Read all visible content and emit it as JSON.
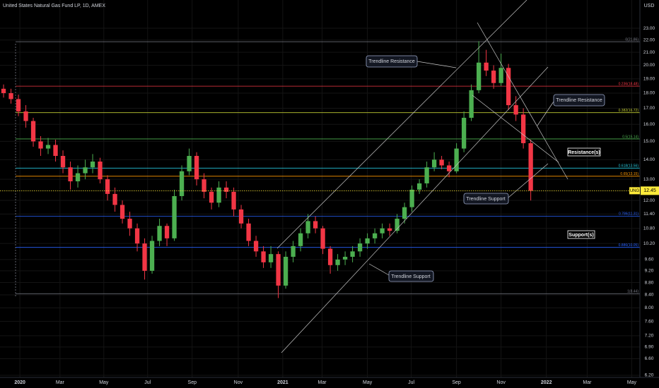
{
  "chart_data": {
    "type": "candlestick",
    "title": "United States Natural Gas Fund LP, 1D, AMEX",
    "currency": "USD",
    "log_scale": true,
    "grid": true,
    "up_color": "#4caf50",
    "down_color": "#f23645",
    "open": [
      18.3,
      18.0,
      17.6,
      16.8,
      16.2,
      15.0,
      14.6,
      14.8,
      14.2,
      13.6,
      12.9,
      13.3,
      13.6,
      13.9,
      13.0,
      12.3,
      11.8,
      11.2,
      10.8,
      10.2,
      9.2,
      10.3,
      10.9,
      10.4,
      12.2,
      13.4,
      14.2,
      13.0,
      12.4,
      11.9,
      12.6,
      12.4,
      11.6,
      11.0,
      10.3,
      9.9,
      9.5,
      9.8,
      8.7,
      9.7,
      10.1,
      10.6,
      11.1,
      10.8,
      10.0,
      9.4,
      9.6,
      9.7,
      9.9,
      10.2,
      10.4,
      10.6,
      10.8,
      10.7,
      11.2,
      11.7,
      12.5,
      12.8,
      13.6,
      14.0,
      13.7,
      13.4,
      14.6,
      16.4,
      18.2,
      20.2,
      19.6,
      18.7,
      19.8,
      17.2,
      16.6,
      14.9
    ],
    "high": [
      18.6,
      18.3,
      17.9,
      17.2,
      16.4,
      15.3,
      15.2,
      15.1,
      14.5,
      13.9,
      13.7,
      14.0,
      14.3,
      14.1,
      13.2,
      12.6,
      12.0,
      11.5,
      11.0,
      10.4,
      10.5,
      11.2,
      11.0,
      12.5,
      13.7,
      14.6,
      14.4,
      13.3,
      12.6,
      12.9,
      12.9,
      12.6,
      11.8,
      11.2,
      10.5,
      10.1,
      10.1,
      9.9,
      9.9,
      10.3,
      10.8,
      11.4,
      11.3,
      10.9,
      10.1,
      9.8,
      9.9,
      10.1,
      10.4,
      10.6,
      10.8,
      11.0,
      11.0,
      11.4,
      11.9,
      12.7,
      13.0,
      13.9,
      14.4,
      14.2,
      13.9,
      14.9,
      16.8,
      18.6,
      21.9,
      21.2,
      20.0,
      20.9,
      20.1,
      17.8,
      17.0,
      15.1
    ],
    "low": [
      17.7,
      17.3,
      16.5,
      15.8,
      14.7,
      14.2,
      14.3,
      13.9,
      13.3,
      12.5,
      12.6,
      13.0,
      13.3,
      12.8,
      12.0,
      11.5,
      11.0,
      10.5,
      9.9,
      8.9,
      9.1,
      10.1,
      10.1,
      10.3,
      12.0,
      13.2,
      12.7,
      12.1,
      11.6,
      11.7,
      12.1,
      11.3,
      10.8,
      10.1,
      9.7,
      9.3,
      9.3,
      8.3,
      8.6,
      9.5,
      9.9,
      10.4,
      10.6,
      9.8,
      9.1,
      9.2,
      9.4,
      9.5,
      9.7,
      10.0,
      10.2,
      10.4,
      10.5,
      10.6,
      11.0,
      11.5,
      12.3,
      12.6,
      13.4,
      13.5,
      13.1,
      13.3,
      14.4,
      16.2,
      18.0,
      19.2,
      18.3,
      18.5,
      16.9,
      16.2,
      14.6,
      12.0
    ],
    "close": [
      18.0,
      17.6,
      16.8,
      16.2,
      15.0,
      14.6,
      14.8,
      14.2,
      13.6,
      12.9,
      13.3,
      13.6,
      13.9,
      13.0,
      12.3,
      11.8,
      11.2,
      10.8,
      10.2,
      9.2,
      10.3,
      10.9,
      10.4,
      12.2,
      13.4,
      14.2,
      13.0,
      12.4,
      11.9,
      12.6,
      12.4,
      11.6,
      11.0,
      10.3,
      9.9,
      9.5,
      9.8,
      8.7,
      9.7,
      10.1,
      10.6,
      11.1,
      10.8,
      10.0,
      9.4,
      9.6,
      9.7,
      9.9,
      10.2,
      10.4,
      10.6,
      10.8,
      10.7,
      11.2,
      11.7,
      12.5,
      12.8,
      13.6,
      14.0,
      13.7,
      13.4,
      14.6,
      16.4,
      18.2,
      20.2,
      19.6,
      18.7,
      19.8,
      17.2,
      16.6,
      14.9,
      12.45
    ],
    "xlim": [
      -0.48,
      85.7
    ],
    "xticks": [
      {
        "value": 2.2,
        "label": "2020"
      },
      {
        "value": 7.6,
        "label": "Mar"
      },
      {
        "value": 13.5,
        "label": "May"
      },
      {
        "value": 19.4,
        "label": "Jul"
      },
      {
        "value": 25.4,
        "label": "Sep"
      },
      {
        "value": 31.6,
        "label": "Nov"
      },
      {
        "value": 37.6,
        "label": "2021"
      },
      {
        "value": 42.9,
        "label": "Mar"
      },
      {
        "value": 49,
        "label": "May"
      },
      {
        "value": 54.9,
        "label": "Jul"
      },
      {
        "value": 61,
        "label": "Sep"
      },
      {
        "value": 67,
        "label": "Nov"
      },
      {
        "value": 73.1,
        "label": "2022"
      },
      {
        "value": 78.6,
        "label": "Mar"
      },
      {
        "value": 84.6,
        "label": "May"
      }
    ],
    "ylim": [
      6.15,
      25.59
    ],
    "yticks": [
      {
        "value": 23,
        "label": "23.00"
      },
      {
        "value": 22,
        "label": "22.00"
      },
      {
        "value": 21,
        "label": "21.00"
      },
      {
        "value": 20,
        "label": "20.00"
      },
      {
        "value": 19,
        "label": "19.00"
      },
      {
        "value": 18,
        "label": "18.00"
      },
      {
        "value": 17,
        "label": "17.00"
      },
      {
        "value": 16,
        "label": "16.00"
      },
      {
        "value": 15,
        "label": "15.00"
      },
      {
        "value": 14,
        "label": "14.00"
      },
      {
        "value": 13,
        "label": "13.00"
      },
      {
        "value": 12,
        "label": "12.00"
      },
      {
        "value": 11.4,
        "label": "11.40"
      },
      {
        "value": 10.8,
        "label": "10.80"
      },
      {
        "value": 10.2,
        "label": "10.20"
      },
      {
        "value": 9.6,
        "label": "9.60"
      },
      {
        "value": 9.2,
        "label": "9.20"
      },
      {
        "value": 8.8,
        "label": "8.80"
      },
      {
        "value": 8.4,
        "label": "8.40"
      },
      {
        "value": 8,
        "label": "8.00"
      },
      {
        "value": 7.6,
        "label": "7.60"
      },
      {
        "value": 7.2,
        "label": "7.20"
      },
      {
        "value": 6.9,
        "label": "6.90"
      },
      {
        "value": 6.6,
        "label": "6.60"
      },
      {
        "value": 6.2,
        "label": "6.20"
      }
    ],
    "fib_levels": [
      {
        "label": "0(21.86)",
        "value": 21.86,
        "color": "#787b86"
      },
      {
        "label": "0.236(18.48)",
        "value": 18.48,
        "color": "#f23645"
      },
      {
        "label": "0.382(16.72)",
        "value": 16.72,
        "color": "#c0ca33"
      },
      {
        "label": "0.5(15.14)",
        "value": 15.14,
        "color": "#4caf50"
      },
      {
        "label": "0.618(13.56)",
        "value": 13.56,
        "color": "#26c6da"
      },
      {
        "label": "0.65(13.15)",
        "value": 13.15,
        "color": "#ff9800"
      },
      {
        "label": "0.786(11.31)",
        "value": 11.31,
        "color": "#2962ff"
      },
      {
        "label": "0.886(10.05)",
        "value": 10.05,
        "color": "#2962ff"
      },
      {
        "label": "1(8.44)",
        "value": 8.44,
        "color": "#787b86"
      }
    ],
    "last_price_label": "UNG",
    "last_price_color": "#ffeb3b",
    "annotations": [
      "Trendline Resistance",
      "Trendline Resistance",
      "Trendline Support",
      "Trendline Support",
      "Resistance(s)",
      "Support(s)"
    ]
  }
}
